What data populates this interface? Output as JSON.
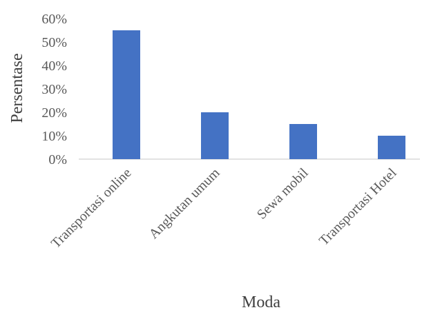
{
  "chart_data": {
    "type": "bar",
    "categories": [
      "Transportasi online",
      "Angkutan umum",
      "Sewa mobil",
      "Transportasi Hotel"
    ],
    "values": [
      0.55,
      0.2,
      0.15,
      0.1
    ],
    "xlabel": "Moda",
    "ylabel": "Persentase",
    "ylim": [
      0,
      0.6
    ],
    "yticks": [
      "0%",
      "10%",
      "20%",
      "30%",
      "40%",
      "50%",
      "60%"
    ],
    "grid": false,
    "legend": "none",
    "colors": {
      "bar": "#4472c4",
      "axis": "#d9d9d9"
    }
  }
}
